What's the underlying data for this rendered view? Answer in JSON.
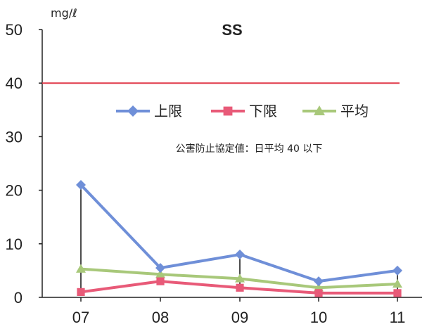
{
  "chart_data": {
    "type": "line",
    "title": "SS",
    "unit": "mg/ℓ",
    "categories": [
      "07",
      "08",
      "09",
      "10",
      "11"
    ],
    "ylim": [
      0,
      50
    ],
    "yticks": [
      "0",
      "10",
      "20",
      "30",
      "40",
      "50"
    ],
    "series": [
      {
        "name": "上限",
        "values": [
          21.0,
          5.5,
          8.0,
          3.0,
          5.0
        ],
        "color": "#6f8fd8",
        "marker": "diamond"
      },
      {
        "name": "下限",
        "values": [
          1.0,
          3.0,
          1.8,
          0.8,
          0.8
        ],
        "color": "#e85a78",
        "marker": "square"
      },
      {
        "name": "平均",
        "values": [
          5.3,
          4.3,
          3.5,
          1.8,
          2.5
        ],
        "color": "#a8c87a",
        "marker": "triangle"
      }
    ],
    "reference_line": {
      "value": 40,
      "color": "#e03a4a"
    },
    "annotation": "公害防止協定値：日平均 40 以下",
    "legend_position": "upper-middle",
    "grid": false
  }
}
